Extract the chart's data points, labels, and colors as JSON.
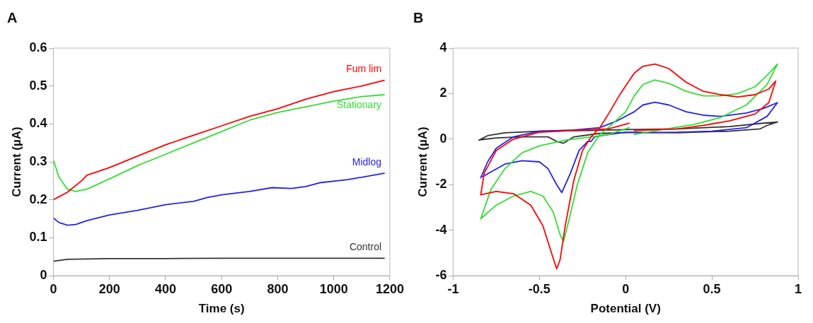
{
  "chart_data": [
    {
      "type": "line",
      "title": "A",
      "xlabel": "Time (s)",
      "ylabel": "Current (µA)",
      "xlim": [
        0,
        1200
      ],
      "ylim": [
        0,
        0.6
      ],
      "xticks": [
        0,
        200,
        400,
        600,
        800,
        1000,
        1200
      ],
      "yticks": [
        0,
        0.1,
        0.2,
        0.3,
        0.4,
        0.5,
        0.6
      ],
      "marker": "none",
      "series": [
        {
          "name": "Fum lim",
          "color": "#ff0000",
          "x": [
            0,
            50,
            100,
            120,
            200,
            300,
            400,
            500,
            600,
            700,
            800,
            900,
            1000,
            1100,
            1180
          ],
          "values": [
            0.2,
            0.22,
            0.25,
            0.265,
            0.285,
            0.315,
            0.345,
            0.37,
            0.395,
            0.42,
            0.44,
            0.465,
            0.485,
            0.5,
            0.515
          ]
        },
        {
          "name": "Stationary",
          "color": "#33dd33",
          "x": [
            0,
            20,
            50,
            80,
            120,
            200,
            300,
            400,
            500,
            600,
            700,
            800,
            900,
            1000,
            1100,
            1180
          ],
          "values": [
            0.305,
            0.26,
            0.228,
            0.222,
            0.228,
            0.255,
            0.29,
            0.32,
            0.35,
            0.38,
            0.41,
            0.43,
            0.445,
            0.46,
            0.472,
            0.477
          ]
        },
        {
          "name": "Midlog",
          "color": "#2222ee",
          "x": [
            0,
            20,
            50,
            80,
            120,
            200,
            300,
            400,
            500,
            550,
            600,
            700,
            780,
            850,
            900,
            950,
            1050,
            1180
          ],
          "values": [
            0.152,
            0.14,
            0.133,
            0.135,
            0.145,
            0.16,
            0.172,
            0.187,
            0.196,
            0.206,
            0.213,
            0.222,
            0.232,
            0.23,
            0.235,
            0.245,
            0.253,
            0.27
          ]
        },
        {
          "name": "Control",
          "color": "#333333",
          "x": [
            0,
            50,
            200,
            400,
            600,
            800,
            1000,
            1180
          ],
          "values": [
            0.038,
            0.043,
            0.045,
            0.045,
            0.046,
            0.046,
            0.046,
            0.046
          ]
        }
      ]
    },
    {
      "type": "line",
      "title": "B",
      "xlabel": "Potential (V)",
      "ylabel": "Current (µA)",
      "xlim": [
        -1,
        1
      ],
      "ylim": [
        -6,
        4
      ],
      "xticks": [
        -1,
        -0.5,
        0,
        0.5,
        1
      ],
      "yticks": [
        -6,
        -4,
        -2,
        0,
        2,
        4
      ],
      "marker": "none",
      "series": [
        {
          "color": "#ff0000",
          "x": [
            0.02,
            -0.1,
            -0.3,
            -0.5,
            -0.65,
            -0.75,
            -0.82,
            -0.84,
            -0.75,
            -0.65,
            -0.55,
            -0.48,
            -0.43,
            -0.4,
            -0.38,
            -0.35,
            -0.3,
            -0.25,
            -0.2,
            -0.15,
            -0.1,
            -0.03,
            0.05,
            0.1,
            0.17,
            0.25,
            0.35,
            0.45,
            0.55,
            0.65,
            0.75,
            0.83,
            0.87,
            0.83,
            0.75,
            0.6,
            0.45,
            0.3,
            0.05
          ],
          "values": [
            0.7,
            0.45,
            0.38,
            0.3,
            0,
            -0.5,
            -1.5,
            -2.45,
            -2.3,
            -2.4,
            -2.9,
            -3.8,
            -5,
            -5.7,
            -5.3,
            -3.8,
            -1.8,
            -0.5,
            0.1,
            0.5,
            1.1,
            2,
            2.9,
            3.2,
            3.3,
            3.1,
            2.5,
            2.1,
            1.95,
            1.85,
            1.95,
            2.2,
            2.55,
            1.6,
            1.1,
            0.8,
            0.6,
            0.45,
            0.38
          ]
        },
        {
          "color": "#33dd33",
          "x": [
            0.02,
            -0.1,
            -0.2,
            -0.35,
            -0.5,
            -0.6,
            -0.7,
            -0.78,
            -0.84,
            -0.75,
            -0.65,
            -0.55,
            -0.48,
            -0.42,
            -0.38,
            -0.36,
            -0.33,
            -0.28,
            -0.22,
            -0.15,
            -0.1,
            0,
            0.05,
            0.1,
            0.17,
            0.25,
            0.35,
            0.45,
            0.55,
            0.65,
            0.75,
            0.82,
            0.88,
            0.82,
            0.7,
            0.55,
            0.4,
            0.2,
            0.05
          ],
          "values": [
            0.5,
            0.2,
            0.1,
            -0.05,
            -0.3,
            -0.6,
            -1.3,
            -2.2,
            -3.5,
            -2.9,
            -2.5,
            -2.3,
            -2.5,
            -3.2,
            -4.2,
            -4.5,
            -3.6,
            -2,
            -0.6,
            0.2,
            0.5,
            1.2,
            1.9,
            2.4,
            2.6,
            2.45,
            2.1,
            1.9,
            1.9,
            2,
            2.3,
            2.8,
            3.3,
            2.4,
            1.5,
            0.95,
            0.65,
            0.4,
            0.2
          ]
        },
        {
          "color": "#2222ee",
          "x": [
            -0.84,
            -0.8,
            -0.75,
            -0.65,
            -0.5,
            -0.3,
            -0.15,
            -0.05,
            0.05,
            0.1,
            0.17,
            0.25,
            0.35,
            0.45,
            0.55,
            0.7,
            0.8,
            0.88,
            0.82,
            0.7,
            0.5,
            0.3,
            0.1,
            0,
            -0.1,
            -0.18,
            -0.2,
            -0.22,
            -0.27,
            -0.32,
            -0.37,
            -0.4,
            -0.45,
            -0.5,
            -0.6,
            -0.7,
            -0.83
          ],
          "values": [
            -1.7,
            -1,
            -0.4,
            0.1,
            0.35,
            0.4,
            0.5,
            0.8,
            1.2,
            1.5,
            1.62,
            1.5,
            1.2,
            1.05,
            1,
            1.15,
            1.35,
            1.6,
            1,
            0.5,
            0.35,
            0.3,
            0.28,
            0.3,
            0.2,
            0.1,
            -0.1,
            -0.1,
            -0.5,
            -1.5,
            -2.35,
            -2,
            -1.3,
            -1,
            -0.95,
            -1.1,
            -1.65
          ]
        },
        {
          "color": "#333333",
          "x": [
            -0.85,
            -0.8,
            -0.7,
            -0.5,
            -0.2,
            0,
            0.3,
            0.6,
            0.8,
            0.88,
            0.82,
            0.78,
            0.6,
            0.3,
            0.05,
            -0.15,
            -0.3,
            -0.36,
            -0.4,
            -0.45,
            -0.6,
            -0.75,
            -0.84
          ],
          "values": [
            -0.05,
            0.15,
            0.28,
            0.35,
            0.38,
            0.42,
            0.45,
            0.55,
            0.7,
            0.75,
            0.6,
            0.45,
            0.35,
            0.28,
            0.3,
            0.25,
            0.1,
            -0.18,
            -0.1,
            0.1,
            0.1,
            0.05,
            -0.03
          ]
        }
      ]
    }
  ]
}
